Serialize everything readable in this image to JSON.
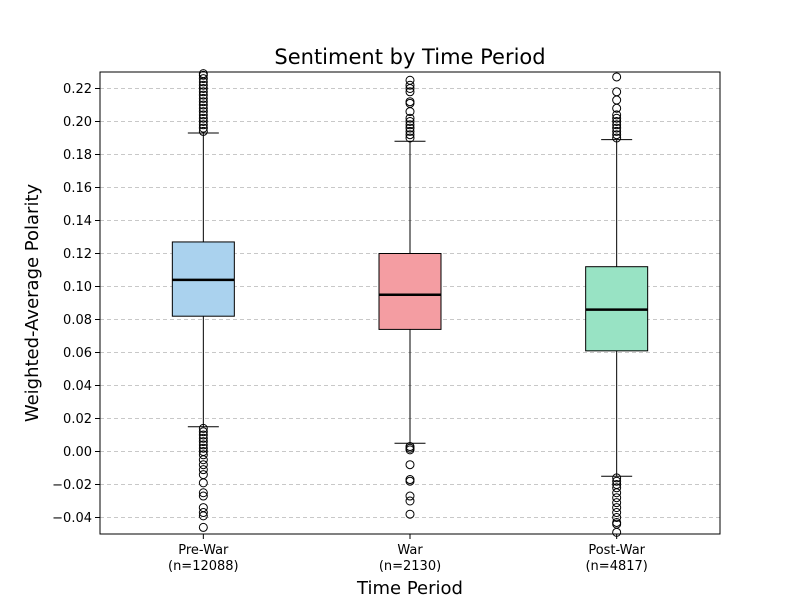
{
  "chart_data": {
    "type": "box",
    "title": "Sentiment by Time Period",
    "xlabel": "Time Period",
    "ylabel": "Weighted-Average Polarity",
    "ylim": [
      -0.05,
      0.23
    ],
    "yticks": [
      -0.04,
      -0.02,
      0.0,
      0.02,
      0.04,
      0.06,
      0.08,
      0.1,
      0.12,
      0.14,
      0.16,
      0.18,
      0.2,
      0.22
    ],
    "ytick_labels": [
      "−0.04",
      "−0.02",
      "0.00",
      "0.02",
      "0.04",
      "0.06",
      "0.08",
      "0.10",
      "0.12",
      "0.14",
      "0.16",
      "0.18",
      "0.20",
      "0.22"
    ],
    "grid": "y-dashed",
    "groups": [
      {
        "label_line1": "Pre-War",
        "label_line2": "(n=12088)",
        "color": "#aad2ee",
        "q1": 0.082,
        "median": 0.104,
        "q3": 0.127,
        "whisker_low": 0.015,
        "whisker_high": 0.193,
        "outliers_high": [
          0.194,
          0.196,
          0.198,
          0.2,
          0.202,
          0.204,
          0.206,
          0.208,
          0.21,
          0.212,
          0.214,
          0.216,
          0.218,
          0.22,
          0.222,
          0.224,
          0.226,
          0.228,
          0.229
        ],
        "outliers_low": [
          0.014,
          0.012,
          0.01,
          0.008,
          0.006,
          0.004,
          0.002,
          0.0,
          -0.002,
          -0.005,
          -0.008,
          -0.011,
          -0.014,
          -0.019,
          -0.025,
          -0.027,
          -0.034,
          -0.037,
          -0.039,
          -0.046
        ]
      },
      {
        "label_line1": "War",
        "label_line2": "(n=2130)",
        "color": "#f49da2",
        "q1": 0.074,
        "median": 0.095,
        "q3": 0.12,
        "whisker_low": 0.005,
        "whisker_high": 0.188,
        "outliers_high": [
          0.19,
          0.192,
          0.194,
          0.196,
          0.198,
          0.2,
          0.202,
          0.206,
          0.211,
          0.212,
          0.218,
          0.22,
          0.222,
          0.225
        ],
        "outliers_low": [
          0.003,
          0.002,
          0.001,
          -0.008,
          -0.017,
          -0.018,
          -0.027,
          -0.03,
          -0.038
        ]
      },
      {
        "label_line1": "Post-War",
        "label_line2": "(n=4817)",
        "color": "#98e3c4",
        "q1": 0.061,
        "median": 0.086,
        "q3": 0.112,
        "whisker_low": -0.015,
        "whisker_high": 0.189,
        "outliers_high": [
          0.19,
          0.192,
          0.194,
          0.196,
          0.198,
          0.2,
          0.202,
          0.204,
          0.208,
          0.213,
          0.218,
          0.227
        ],
        "outliers_low": [
          -0.016,
          -0.018,
          -0.02,
          -0.022,
          -0.025,
          -0.028,
          -0.031,
          -0.034,
          -0.037,
          -0.04,
          -0.043,
          -0.044,
          -0.049
        ]
      }
    ]
  }
}
